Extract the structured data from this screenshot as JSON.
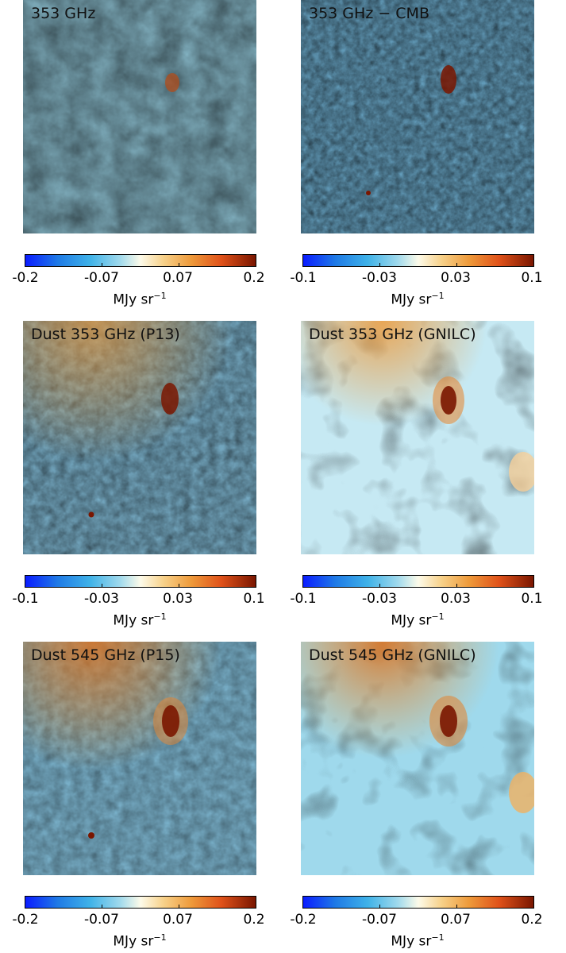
{
  "chart_data": [
    {
      "type": "heatmap",
      "title": "353 GHz",
      "colorbar": {
        "ticks": [
          "-0.2",
          "-0.07",
          "0.07",
          "0.2"
        ],
        "range": [
          -0.2,
          0.2
        ],
        "unit": "MJy sr",
        "unit_exp": "−1"
      },
      "colormap": "blue-white-orange-darkred"
    },
    {
      "type": "heatmap",
      "title": "353 GHz − CMB",
      "colorbar": {
        "ticks": [
          "-0.1",
          "-0.03",
          "0.03",
          "0.1"
        ],
        "range": [
          -0.1,
          0.1
        ],
        "unit": "MJy sr",
        "unit_exp": "−1"
      },
      "colormap": "blue-white-orange-darkred"
    },
    {
      "type": "heatmap",
      "title": "Dust 353 GHz (P13)",
      "colorbar": {
        "ticks": [
          "-0.1",
          "-0.03",
          "0.03",
          "0.1"
        ],
        "range": [
          -0.1,
          0.1
        ],
        "unit": "MJy sr",
        "unit_exp": "−1"
      },
      "colormap": "blue-white-orange-darkred"
    },
    {
      "type": "heatmap",
      "title": "Dust 353 GHz (GNILC)",
      "colorbar": {
        "ticks": [
          "-0.1",
          "-0.03",
          "0.03",
          "0.1"
        ],
        "range": [
          -0.1,
          0.1
        ],
        "unit": "MJy sr",
        "unit_exp": "−1"
      },
      "colormap": "blue-white-orange-darkred"
    },
    {
      "type": "heatmap",
      "title": "Dust 545 GHz (P15)",
      "colorbar": {
        "ticks": [
          "-0.2",
          "-0.07",
          "0.07",
          "0.2"
        ],
        "range": [
          -0.2,
          0.2
        ],
        "unit": "MJy sr",
        "unit_exp": "−1"
      },
      "colormap": "blue-white-orange-darkred"
    },
    {
      "type": "heatmap",
      "title": "Dust 545 GHz (GNILC)",
      "colorbar": {
        "ticks": [
          "-0.2",
          "-0.07",
          "0.07",
          "0.2"
        ],
        "range": [
          -0.2,
          0.2
        ],
        "unit": "MJy sr",
        "unit_exp": "−1"
      },
      "colormap": "blue-white-orange-darkred"
    }
  ],
  "colors": {
    "negative": "#1f7ae6",
    "neutral": "#fdfbea",
    "positive": "#ee9a3a",
    "peak": "#7a1600"
  }
}
